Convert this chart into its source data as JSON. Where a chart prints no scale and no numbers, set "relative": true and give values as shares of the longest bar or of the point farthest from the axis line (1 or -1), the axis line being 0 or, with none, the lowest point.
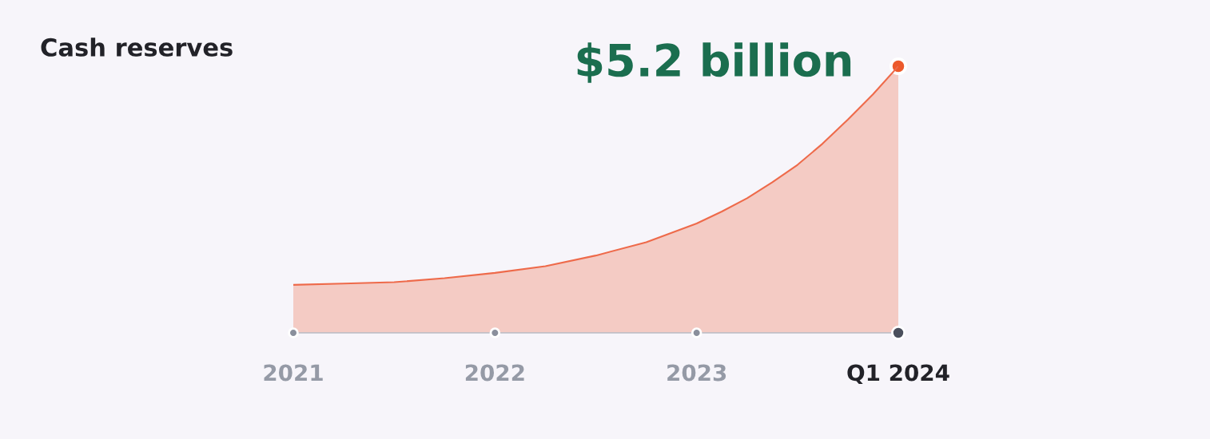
{
  "chart_data": {
    "type": "area",
    "title": "Cash reserves",
    "relative": true,
    "xlim": [
      2021,
      2024
    ],
    "xticks": [
      2021,
      2022,
      2023,
      {
        "value": 2024,
        "label": "Q1 2024"
      }
    ],
    "series": [
      {
        "color": "#ee6a4a",
        "x": [
          2021,
          2021.25,
          2021.5,
          2021.75,
          2022,
          2022.25,
          2022.5,
          2022.75,
          2023,
          2023.125,
          2023.25,
          2023.375,
          2023.5,
          2023.625,
          2023.75,
          2023.875,
          2024
        ],
        "values": [
          0.18,
          0.185,
          0.19,
          0.205,
          0.225,
          0.25,
          0.29,
          0.34,
          0.41,
          0.455,
          0.505,
          0.565,
          0.63,
          0.71,
          0.8,
          0.895,
          1
        ]
      }
    ],
    "annotations": [
      {
        "text": "$5.2 billion",
        "x": 2024,
        "y": 1
      }
    ],
    "grid": false,
    "legend": false
  }
}
